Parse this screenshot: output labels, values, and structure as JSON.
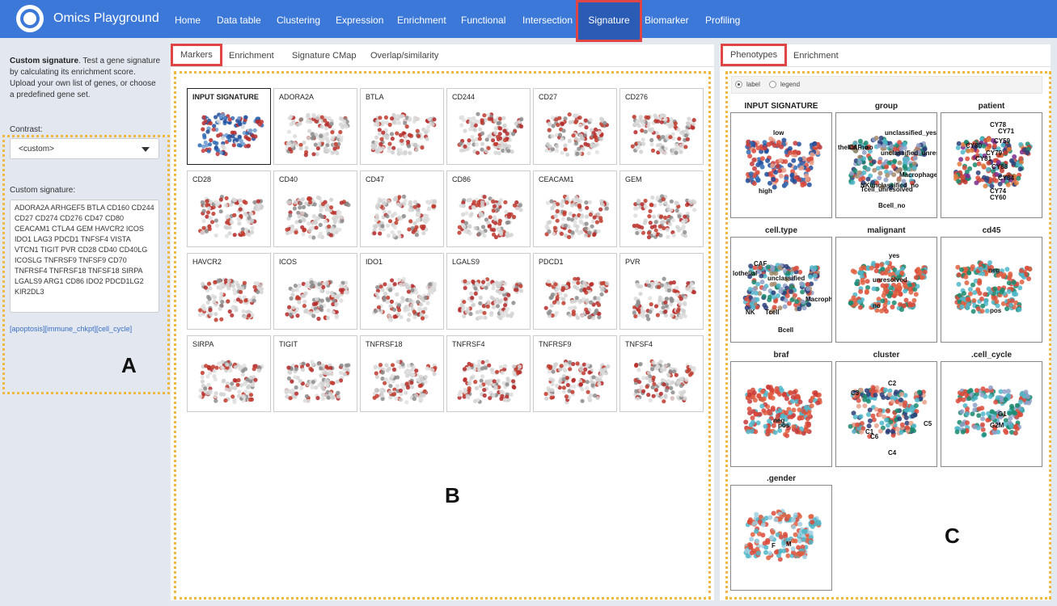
{
  "app": {
    "title": "Omics Playground"
  },
  "nav": {
    "items": [
      "Home",
      "Data table",
      "Clustering",
      "Expression",
      "Enrichment",
      "Functional",
      "Intersection",
      "Signature",
      "Biomarker",
      "Profiling"
    ],
    "active": "Signature"
  },
  "sidebar": {
    "desc_bold": "Custom signature",
    "desc_rest": ". Test a gene signature by calculating its enrichment score. Upload your own list of genes, or choose a predefined gene set.",
    "contrast_label": "Contrast:",
    "contrast_value": "<custom>",
    "signature_label": "Custom signature:",
    "signature_text": "ADORA2A ARHGEF5 BTLA CD160 CD244 CD27 CD274 CD276 CD47 CD80 CEACAM1 CTLA4 GEM HAVCR2 ICOS IDO1 LAG3 PDCD1 TNFSF4 VISTA VTCN1 TIGIT PVR CD28 CD40 CD40LG ICOSLG TNFRSF9 TNFSF9 CD70 TNFRSF4 TNFRSF18 TNFSF18 SIRPA LGALS9 ARG1 CD86 IDO2 PDCD1LG2 KIR2DL3",
    "links": "[apoptosis][immune_chkpt][cell_cycle]"
  },
  "markers_panel": {
    "tabs": [
      "Markers",
      "Enrichment",
      "Signature CMap",
      "Overlap/similarity"
    ],
    "plots": [
      "INPUT SIGNATURE",
      "ADORA2A",
      "BTLA",
      "CD244",
      "CD27",
      "CD276",
      "CD28",
      "CD40",
      "CD47",
      "CD86",
      "CEACAM1",
      "GEM",
      "HAVCR2",
      "ICOS",
      "IDO1",
      "LGALS9",
      "PDCD1",
      "PVR",
      "SIRPA",
      "TIGIT",
      "TNFRSF18",
      "TNFRSF4",
      "TNFRSF9",
      "TNFSF4"
    ]
  },
  "phenotypes_panel": {
    "tabs": [
      "Phenotypes",
      "Enrichment"
    ],
    "radio_label": "label",
    "radio_legend": "legend",
    "plots": [
      {
        "title": "INPUT SIGNATURE",
        "labels": [
          "low",
          "high"
        ]
      },
      {
        "title": "group",
        "labels": [
          "unclassified_yes",
          "CAF_no",
          "thelial_no",
          "unclassified_unresolved",
          "Macrophage",
          "NKunclassified_no",
          "Tcell_unresolved",
          "Bcell_no"
        ]
      },
      {
        "title": "patient",
        "labels": [
          "CY78",
          "CY71",
          "CY59",
          "CY80",
          "CY79",
          "CY81",
          "CY88",
          "CY84",
          "CY74",
          "CY60"
        ]
      },
      {
        "title": "cell.type",
        "labels": [
          "CAF",
          "lothelial",
          "unclassified",
          "Macropha",
          "NK",
          "Tcell",
          "Bcell"
        ]
      },
      {
        "title": "malignant",
        "labels": [
          "yes",
          "unresolved",
          "no"
        ]
      },
      {
        "title": "cd45",
        "labels": [
          "neg",
          "pos"
        ]
      },
      {
        "title": "braf",
        "labels": [
          "neg",
          "pos"
        ]
      },
      {
        "title": "cluster",
        "labels": [
          "C2",
          "C3",
          "C5",
          "C1",
          "C6",
          "C4"
        ]
      },
      {
        "title": ".cell_cycle",
        "labels": [
          "G1",
          "G2M"
        ]
      },
      {
        "title": ".gender",
        "labels": [
          "F",
          "M"
        ]
      }
    ]
  },
  "annotations": {
    "a": "A",
    "b": "B",
    "c": "C"
  },
  "colors": {
    "nav": "#3b78d8",
    "nav_active": "#2b5cb5",
    "highlight_red": "#e04545",
    "dash_yellow": "#f0b840",
    "point_red": "#b52a2a",
    "point_gray": "#8c8c8c"
  }
}
